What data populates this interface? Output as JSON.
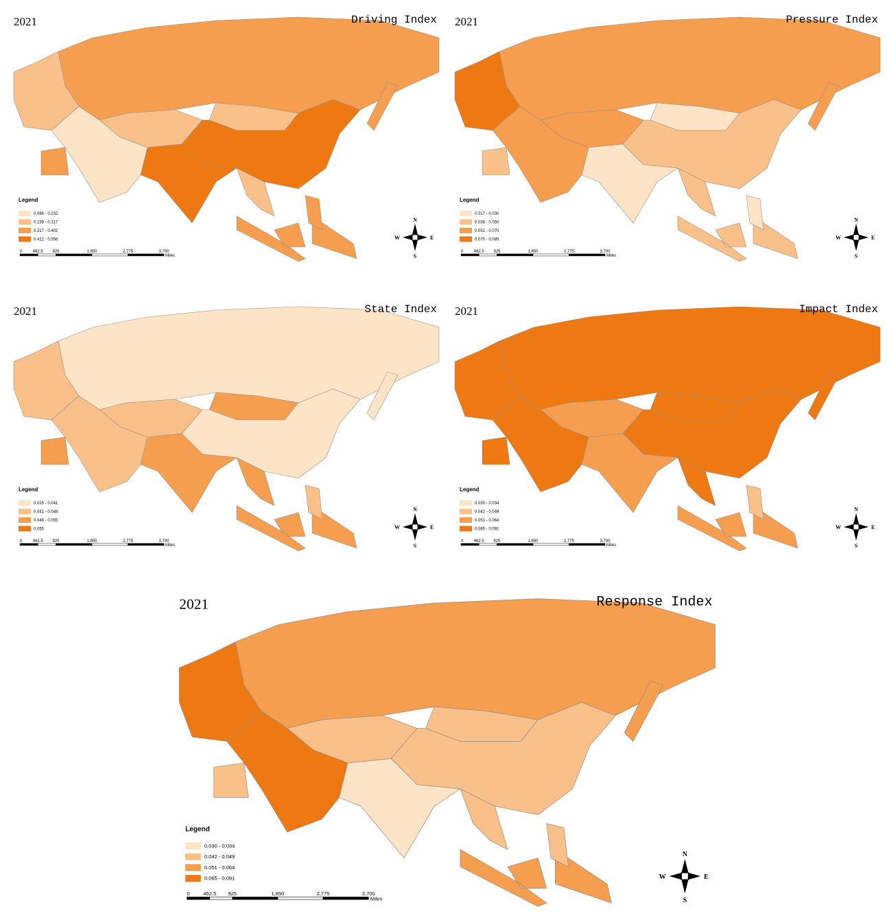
{
  "legend_colors": [
    "#fde4c6",
    "#f9c189",
    "#f59e4f",
    "#ee7913"
  ],
  "panels": [
    {
      "year": "2021",
      "title": "Driving Index",
      "legend": {
        "title": "Legend",
        "items": [
          "0.088 - 0.232",
          "0.238 - 0.317",
          "0.317 - 0.402",
          "0.412 - 0.556"
        ]
      },
      "scale": {
        "labels": [
          "0",
          "462.5",
          "925",
          "1,850",
          "2,775",
          "3,700"
        ],
        "unit": "Miles"
      },
      "compass": {
        "n": "N",
        "s": "S",
        "e": "E",
        "w": "W"
      }
    },
    {
      "year": "2021",
      "title": "Pressure Index",
      "legend": {
        "title": "Legend",
        "items": [
          "0.017 - 0.030",
          "0.036 - 0.050",
          "0.051 - 0.070",
          "0.070 - 0.085"
        ]
      },
      "scale": {
        "labels": [
          "0",
          "462.5",
          "925",
          "1,850",
          "2,775",
          "3,700"
        ],
        "unit": "Miles"
      },
      "compass": {
        "n": "N",
        "s": "S",
        "e": "E",
        "w": "W"
      }
    },
    {
      "year": "2021",
      "title": "State Index",
      "legend": {
        "title": "Legend",
        "items": [
          "0.025 - 0.041",
          "0.041 - 0.048",
          "0.048 - 0.055",
          "0.055"
        ]
      },
      "scale": {
        "labels": [
          "0",
          "462.5",
          "925",
          "1,850",
          "2,775",
          "3,700"
        ],
        "unit": "Miles"
      },
      "compass": {
        "n": "N",
        "s": "S",
        "e": "E",
        "w": "W"
      }
    },
    {
      "year": "2021",
      "title": "Impact Index",
      "legend": {
        "title": "Legend",
        "items": [
          "0.030 - 0.034",
          "0.042 - 0.049",
          "0.051 - 0.064",
          "0.065 - 0.091"
        ]
      },
      "scale": {
        "labels": [
          "0",
          "462.5",
          "925",
          "1,850",
          "2,775",
          "3,700"
        ],
        "unit": "Miles"
      },
      "compass": {
        "n": "N",
        "s": "S",
        "e": "E",
        "w": "W"
      }
    },
    {
      "year": "2021",
      "title": "Response Index",
      "legend": {
        "title": "Legend",
        "items": [
          "0.030 - 0.034",
          "0.042 - 0.049",
          "0.051 - 0.064",
          "0.065 - 0.091"
        ]
      },
      "scale": {
        "labels": [
          "0",
          "462.5",
          "925",
          "1,850",
          "2,775",
          "3,700"
        ],
        "unit": "Miles"
      },
      "compass": {
        "n": "N",
        "s": "S",
        "e": "E",
        "w": "W"
      }
    }
  ]
}
